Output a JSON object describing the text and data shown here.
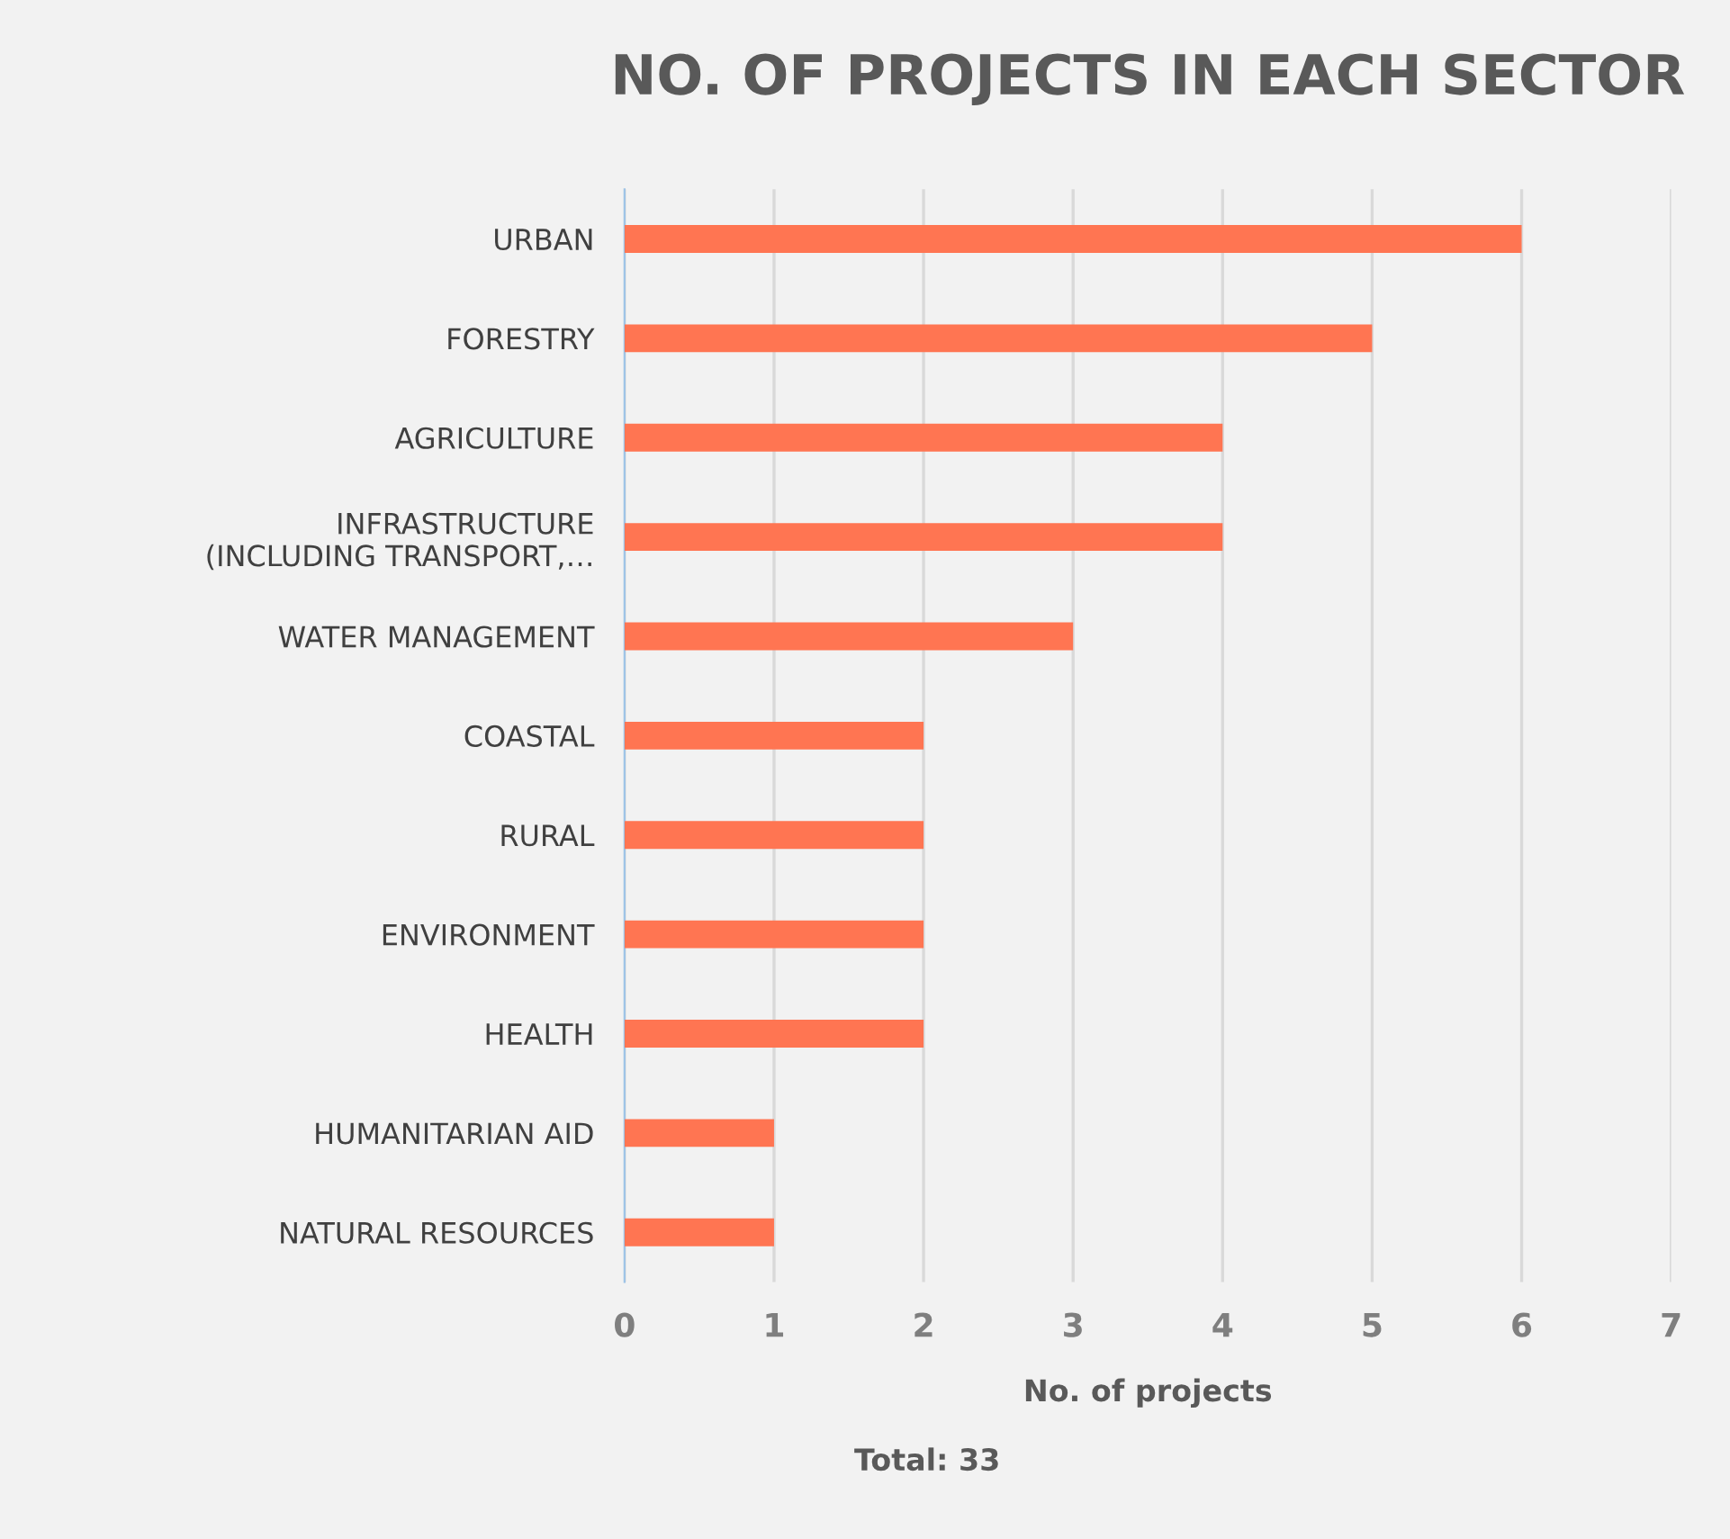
{
  "chart_data": {
    "type": "bar",
    "orientation": "horizontal",
    "title": "NO. OF PROJECTS IN EACH SECTOR",
    "categories": [
      "URBAN",
      "FORESTRY",
      "AGRICULTURE",
      "INFRASTRUCTURE\n(INCLUDING TRANSPORT,…",
      "WATER MANAGEMENT",
      "COASTAL",
      "RURAL",
      "ENVIRONMENT",
      "HEALTH",
      "HUMANITARIAN AID",
      "NATURAL RESOURCES"
    ],
    "values": [
      6,
      5,
      4,
      4,
      3,
      2,
      2,
      2,
      2,
      1,
      1
    ],
    "color": "#ff7552",
    "xlim": [
      0,
      7
    ],
    "xticks": [
      0,
      1,
      2,
      3,
      4,
      5,
      6,
      7
    ],
    "grid": "x",
    "xlabel": "No. of projects",
    "annotations": [
      "Total: 33"
    ]
  }
}
